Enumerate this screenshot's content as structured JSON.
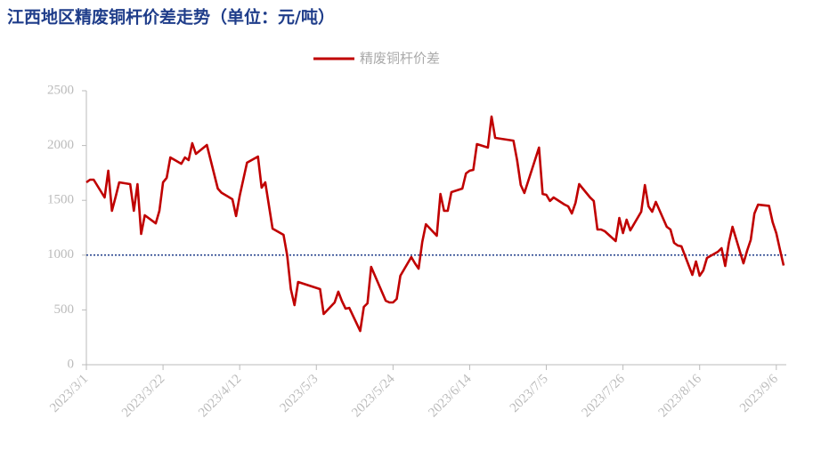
{
  "chart_data": {
    "type": "line",
    "title": "江西地区精废铜杆价差走势（单位：元/吨）",
    "x": [
      "2023/3/1",
      "2023/3/2",
      "2023/3/3",
      "2023/3/6",
      "2023/3/7",
      "2023/3/8",
      "2023/3/9",
      "2023/3/10",
      "2023/3/13",
      "2023/3/14",
      "2023/3/15",
      "2023/3/16",
      "2023/3/17",
      "2023/3/20",
      "2023/3/21",
      "2023/3/22",
      "2023/3/23",
      "2023/3/24",
      "2023/3/27",
      "2023/3/28",
      "2023/3/29",
      "2023/3/30",
      "2023/3/31",
      "2023/4/3",
      "2023/4/6",
      "2023/4/7",
      "2023/4/10",
      "2023/4/11",
      "2023/4/12",
      "2023/4/14",
      "2023/4/17",
      "2023/4/18",
      "2023/4/19",
      "2023/4/21",
      "2023/4/24",
      "2023/4/25",
      "2023/4/26",
      "2023/4/27",
      "2023/4/28",
      "2023/5/4",
      "2023/5/5",
      "2023/5/8",
      "2023/5/9",
      "2023/5/10",
      "2023/5/11",
      "2023/5/12",
      "2023/5/15",
      "2023/5/16",
      "2023/5/17",
      "2023/5/18",
      "2023/5/22",
      "2023/5/23",
      "2023/5/24",
      "2023/5/25",
      "2023/5/26",
      "2023/5/29",
      "2023/5/30",
      "2023/5/31",
      "2023/6/1",
      "2023/6/2",
      "2023/6/5",
      "2023/6/6",
      "2023/6/7",
      "2023/6/8",
      "2023/6/9",
      "2023/6/12",
      "2023/6/13",
      "2023/6/14",
      "2023/6/15",
      "2023/6/16",
      "2023/6/19",
      "2023/6/20",
      "2023/6/21",
      "2023/6/26",
      "2023/6/27",
      "2023/6/28",
      "2023/6/29",
      "2023/7/3",
      "2023/7/4",
      "2023/7/5",
      "2023/7/6",
      "2023/7/7",
      "2023/7/10",
      "2023/7/11",
      "2023/7/12",
      "2023/7/13",
      "2023/7/14",
      "2023/7/17",
      "2023/7/18",
      "2023/7/19",
      "2023/7/20",
      "2023/7/21",
      "2023/7/24",
      "2023/7/25",
      "2023/7/26",
      "2023/7/27",
      "2023/7/28",
      "2023/7/31",
      "2023/8/1",
      "2023/8/2",
      "2023/8/3",
      "2023/8/4",
      "2023/8/7",
      "2023/8/8",
      "2023/8/9",
      "2023/8/10",
      "2023/8/11",
      "2023/8/14",
      "2023/8/15",
      "2023/8/16",
      "2023/8/17",
      "2023/8/18",
      "2023/8/21",
      "2023/8/22",
      "2023/8/23",
      "2023/8/24",
      "2023/8/25",
      "2023/8/28",
      "2023/8/29",
      "2023/8/30",
      "2023/8/31",
      "2023/9/1",
      "2023/9/4",
      "2023/9/5",
      "2023/9/6",
      "2023/9/7",
      "2023/9/8"
    ],
    "series": [
      {
        "name": "精废铜杆价差",
        "color": "#c00000",
        "values": [
          1664,
          1688,
          1688,
          1526,
          1770,
          1404,
          1530,
          1664,
          1648,
          1404,
          1648,
          1193,
          1364,
          1290,
          1404,
          1664,
          1705,
          1891,
          1834,
          1891,
          1867,
          2021,
          1924,
          2005,
          1607,
          1570,
          1510,
          1356,
          1542,
          1843,
          1899,
          1615,
          1664,
          1242,
          1185,
          998,
          690,
          544,
          755,
          690,
          463,
          568,
          666,
          580,
          511,
          519,
          308,
          528,
          560,
          893,
          584,
          568,
          568,
          601,
          812,
          982,
          925,
          877,
          1120,
          1282,
          1177,
          1558,
          1404,
          1404,
          1575,
          1607,
          1745,
          1770,
          1778,
          2013,
          1981,
          2265,
          2070,
          2045,
          1867,
          1640,
          1567,
          1981,
          1558,
          1550,
          1494,
          1526,
          1461,
          1445,
          1380,
          1477,
          1648,
          1526,
          1494,
          1234,
          1234,
          1218,
          1128,
          1339,
          1201,
          1323,
          1226,
          1396,
          1640,
          1445,
          1396,
          1485,
          1258,
          1234,
          1112,
          1088,
          1080,
          820,
          942,
          812,
          860,
          974,
          1031,
          1063,
          901,
          1112,
          1258,
          925,
          1040,
          1140,
          1380,
          1460,
          1450,
          1300,
          1200,
          1050,
          905
        ]
      }
    ],
    "xlim": [
      "2023/3/1",
      "2023/9/8"
    ],
    "xticks": [
      "2023/3/1",
      "2023/3/22",
      "2023/4/12",
      "2023/5/3",
      "2023/5/24",
      "2023/6/14",
      "2023/7/5",
      "2023/7/26",
      "2023/8/16",
      "2023/9/6"
    ],
    "ylim": [
      0,
      2500
    ],
    "yticks": [
      0,
      500,
      1000,
      1500,
      2000,
      2500
    ],
    "reference_line": {
      "value": 1000,
      "color": "#1f3d8a"
    },
    "legend": "top"
  }
}
